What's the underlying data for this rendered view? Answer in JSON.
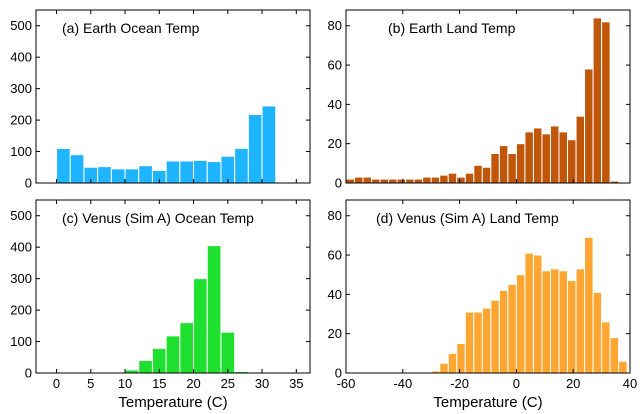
{
  "chart_data": [
    {
      "id": "a",
      "type": "bar",
      "title": "(a) Earth Ocean Temp",
      "color": "#1eb4ff",
      "xlim": [
        -3,
        37
      ],
      "ylim": [
        0,
        550
      ],
      "xticks": [
        0,
        5,
        10,
        15,
        20,
        25,
        30,
        35
      ],
      "yticks": [
        0,
        100,
        200,
        300,
        400,
        500
      ],
      "show_xtick_labels": false,
      "xlabel": "",
      "bin_width": 2,
      "bins": [
        {
          "x": 0,
          "y": 110
        },
        {
          "x": 2,
          "y": 90
        },
        {
          "x": 4,
          "y": 50
        },
        {
          "x": 6,
          "y": 52
        },
        {
          "x": 8,
          "y": 45
        },
        {
          "x": 10,
          "y": 45
        },
        {
          "x": 12,
          "y": 55
        },
        {
          "x": 14,
          "y": 40
        },
        {
          "x": 16,
          "y": 70
        },
        {
          "x": 18,
          "y": 70
        },
        {
          "x": 20,
          "y": 72
        },
        {
          "x": 22,
          "y": 68
        },
        {
          "x": 24,
          "y": 85
        },
        {
          "x": 26,
          "y": 110
        },
        {
          "x": 28,
          "y": 218
        },
        {
          "x": 30,
          "y": 245
        },
        {
          "x": 32,
          "y": 2
        },
        {
          "x": 34,
          "y": 2
        }
      ]
    },
    {
      "id": "b",
      "type": "bar",
      "title": "(b) Earth Land Temp",
      "color": "#c0560a",
      "xlim": [
        -60,
        40
      ],
      "ylim": [
        0,
        88
      ],
      "xticks": [
        -60,
        -40,
        -20,
        0,
        20,
        40
      ],
      "yticks": [
        0,
        20,
        40,
        60,
        80
      ],
      "show_xtick_labels": false,
      "xlabel": "",
      "bin_width": 3,
      "bins": [
        {
          "x": -60,
          "y": 2
        },
        {
          "x": -57,
          "y": 3
        },
        {
          "x": -54,
          "y": 3
        },
        {
          "x": -51,
          "y": 2
        },
        {
          "x": -48,
          "y": 2
        },
        {
          "x": -45,
          "y": 2
        },
        {
          "x": -42,
          "y": 2
        },
        {
          "x": -39,
          "y": 2
        },
        {
          "x": -36,
          "y": 2
        },
        {
          "x": -33,
          "y": 3
        },
        {
          "x": -30,
          "y": 3
        },
        {
          "x": -27,
          "y": 4
        },
        {
          "x": -24,
          "y": 5
        },
        {
          "x": -21,
          "y": 3
        },
        {
          "x": -18,
          "y": 5
        },
        {
          "x": -15,
          "y": 9
        },
        {
          "x": -12,
          "y": 8
        },
        {
          "x": -9,
          "y": 15
        },
        {
          "x": -6,
          "y": 19
        },
        {
          "x": -3,
          "y": 15
        },
        {
          "x": 0,
          "y": 20
        },
        {
          "x": 3,
          "y": 26
        },
        {
          "x": 6,
          "y": 28
        },
        {
          "x": 9,
          "y": 25
        },
        {
          "x": 12,
          "y": 29
        },
        {
          "x": 15,
          "y": 26
        },
        {
          "x": 18,
          "y": 22
        },
        {
          "x": 21,
          "y": 34
        },
        {
          "x": 24,
          "y": 58
        },
        {
          "x": 27,
          "y": 84
        },
        {
          "x": 30,
          "y": 82
        },
        {
          "x": 33,
          "y": 1
        }
      ]
    },
    {
      "id": "c",
      "type": "bar",
      "title": "(c) Venus (Sim A) Ocean Temp",
      "color": "#1fe02f",
      "xlim": [
        -3,
        37
      ],
      "ylim": [
        0,
        550
      ],
      "xticks": [
        0,
        5,
        10,
        15,
        20,
        25,
        30,
        35
      ],
      "yticks": [
        0,
        100,
        200,
        300,
        400,
        500
      ],
      "show_xtick_labels": true,
      "xlabel": "Temperature (C)",
      "bin_width": 2,
      "bins": [
        {
          "x": 6,
          "y": 2
        },
        {
          "x": 8,
          "y": 3
        },
        {
          "x": 10,
          "y": 10
        },
        {
          "x": 12,
          "y": 40
        },
        {
          "x": 14,
          "y": 78
        },
        {
          "x": 16,
          "y": 118
        },
        {
          "x": 18,
          "y": 160
        },
        {
          "x": 20,
          "y": 300
        },
        {
          "x": 22,
          "y": 405
        },
        {
          "x": 24,
          "y": 130
        },
        {
          "x": 26,
          "y": 5
        }
      ]
    },
    {
      "id": "d",
      "type": "bar",
      "title": "(d) Venus (Sim A) Land Temp",
      "color": "#ffa632",
      "xlim": [
        -60,
        40
      ],
      "ylim": [
        0,
        88
      ],
      "xticks": [
        -60,
        -40,
        -20,
        0,
        20,
        40
      ],
      "yticks": [
        0,
        20,
        40,
        60,
        80
      ],
      "show_xtick_labels": true,
      "xlabel": "Temperature (C)",
      "bin_width": 3,
      "bins": [
        {
          "x": -36,
          "y": 0.3
        },
        {
          "x": -33,
          "y": 0.3
        },
        {
          "x": -30,
          "y": 1
        },
        {
          "x": -27,
          "y": 5
        },
        {
          "x": -24,
          "y": 10
        },
        {
          "x": -21,
          "y": 15
        },
        {
          "x": -18,
          "y": 31
        },
        {
          "x": -15,
          "y": 31
        },
        {
          "x": -12,
          "y": 33
        },
        {
          "x": -9,
          "y": 37
        },
        {
          "x": -6,
          "y": 42
        },
        {
          "x": -3,
          "y": 45
        },
        {
          "x": 0,
          "y": 50
        },
        {
          "x": 3,
          "y": 61
        },
        {
          "x": 6,
          "y": 60
        },
        {
          "x": 9,
          "y": 52
        },
        {
          "x": 12,
          "y": 53
        },
        {
          "x": 15,
          "y": 52
        },
        {
          "x": 18,
          "y": 47
        },
        {
          "x": 21,
          "y": 53
        },
        {
          "x": 24,
          "y": 69
        },
        {
          "x": 27,
          "y": 41
        },
        {
          "x": 30,
          "y": 26
        },
        {
          "x": 33,
          "y": 18
        },
        {
          "x": 36,
          "y": 6
        }
      ]
    }
  ]
}
